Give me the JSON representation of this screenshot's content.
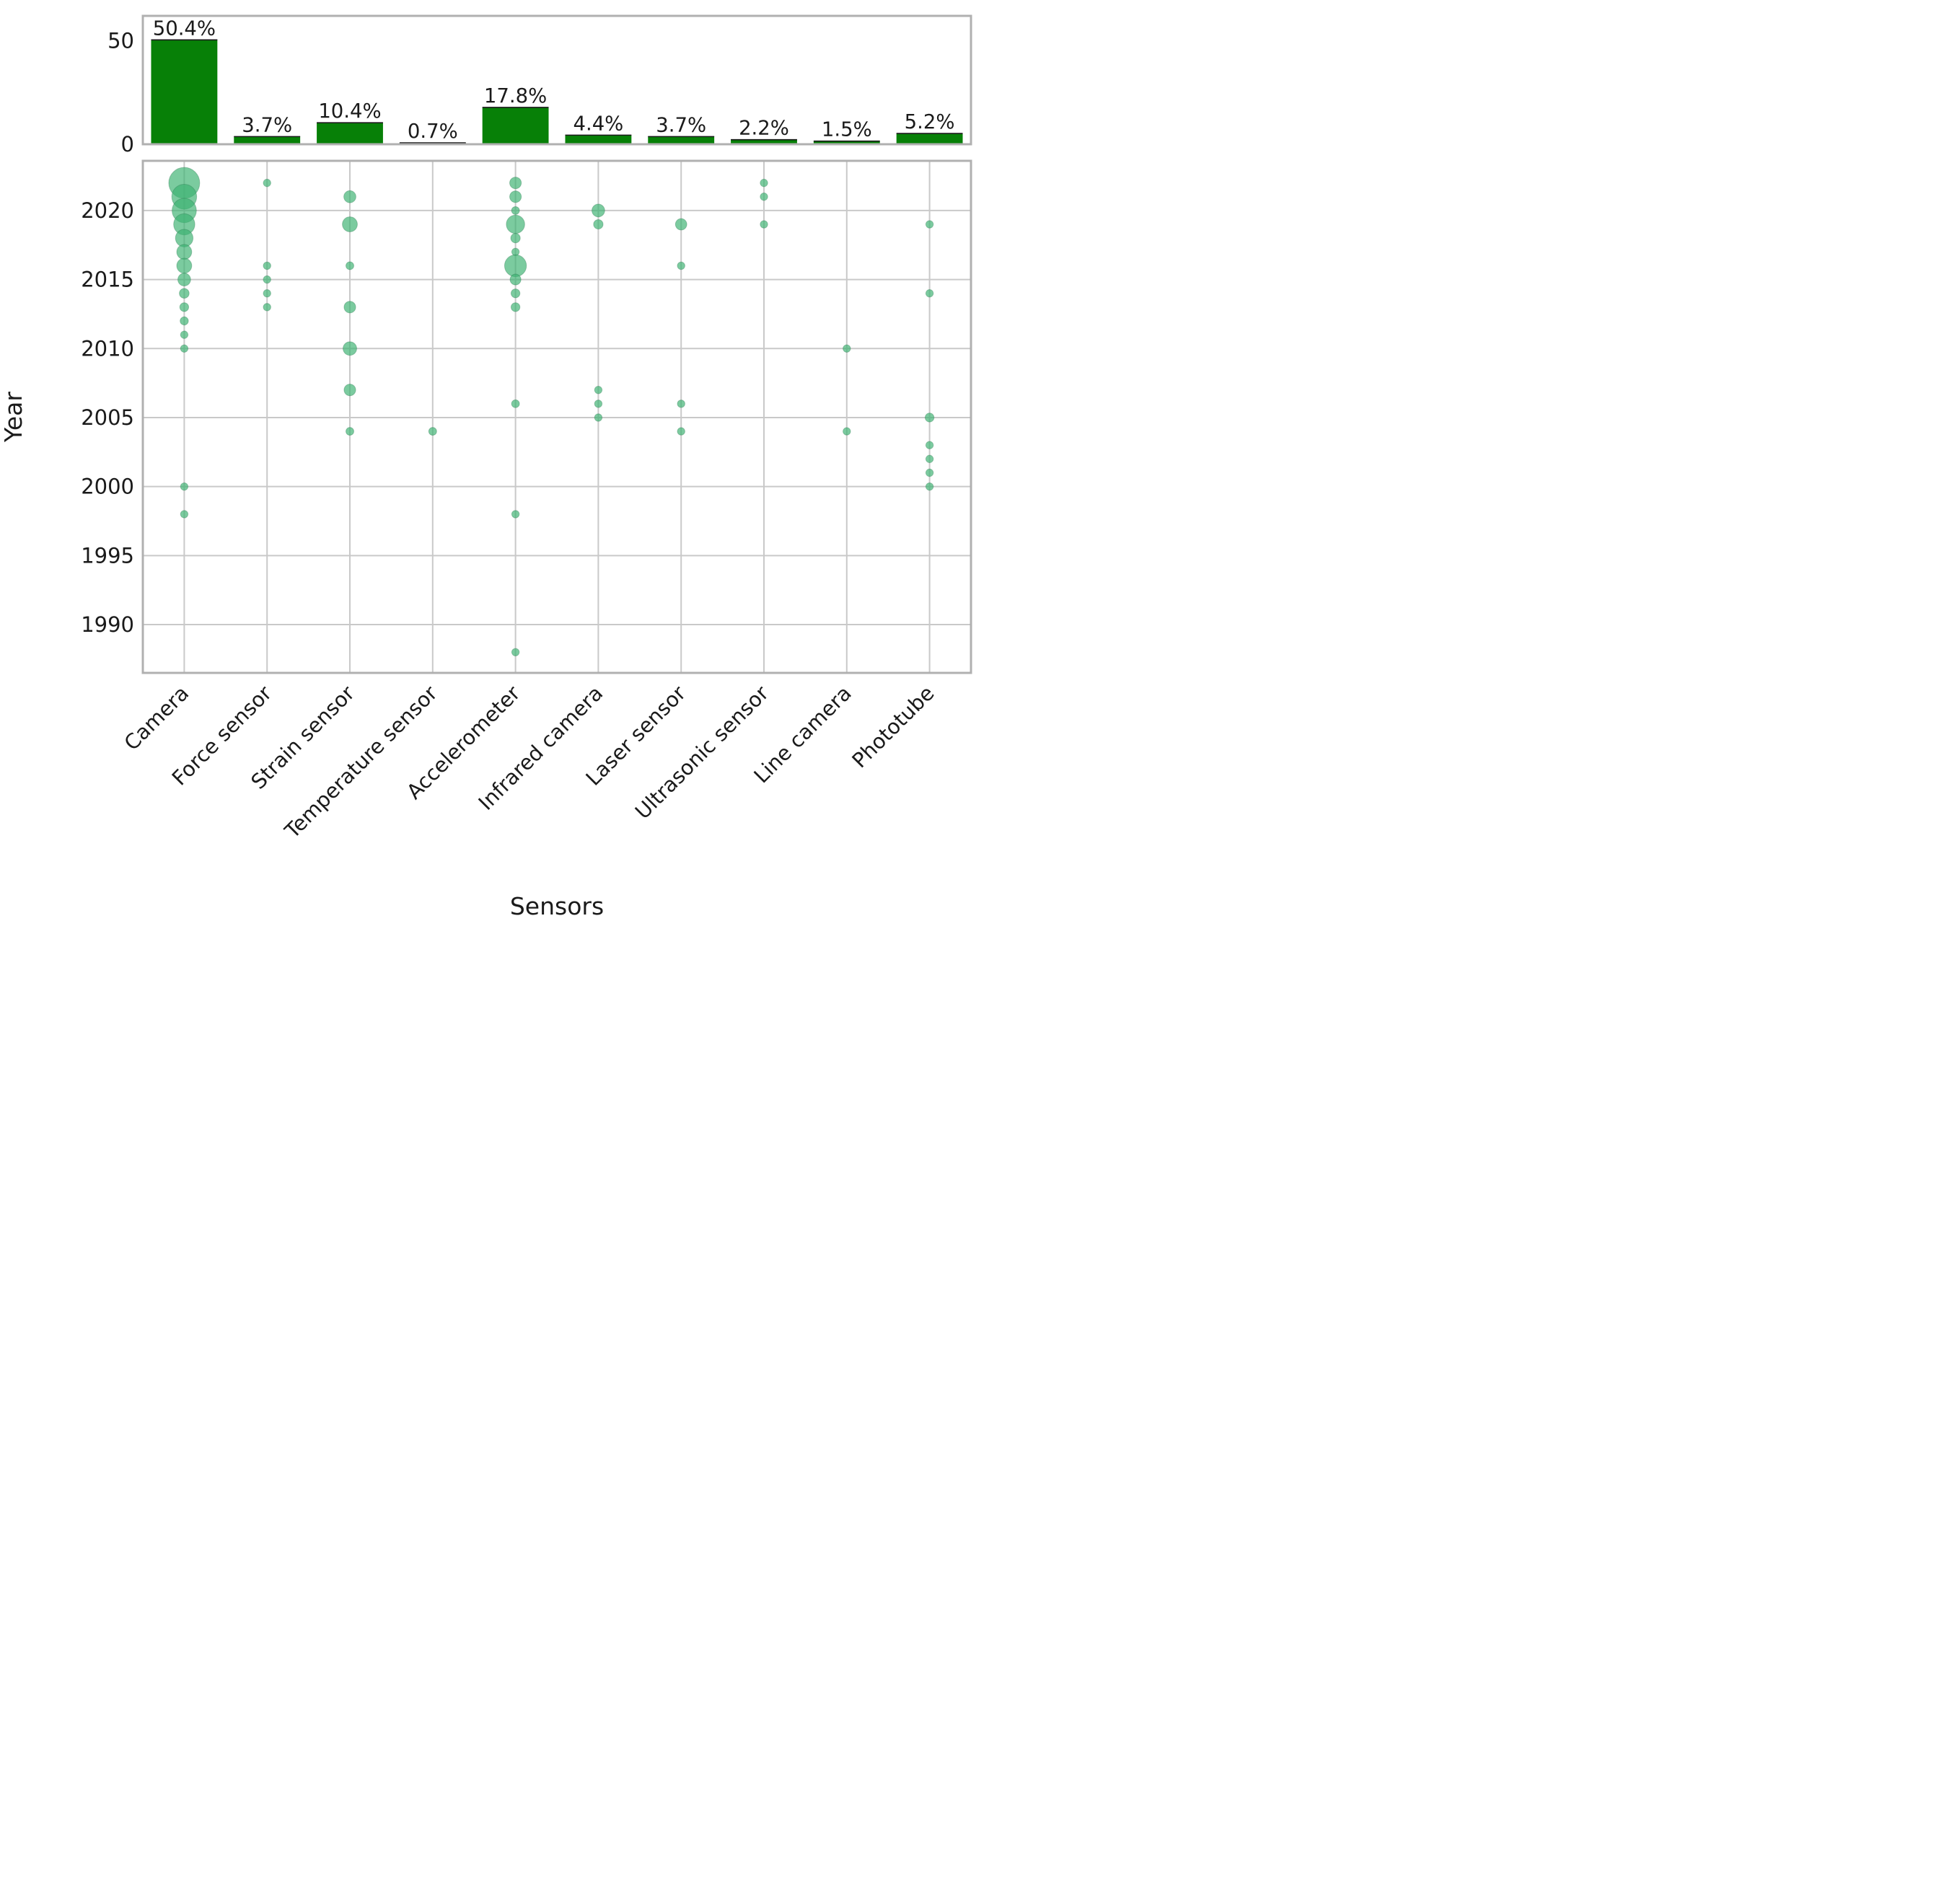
{
  "figure": {
    "xlabel": "Sensors",
    "ylabel_scatter": "Year",
    "colors": {
      "bar_fill": "#078007",
      "bar_top_edge": "#1a1a1a",
      "bubble_fill": "#3CB371",
      "bubble_alpha": 0.68,
      "bubble_edge": "rgba(40,120,76,0.35)",
      "grid": "#c9c9c9",
      "frame": "#b0b0b0",
      "text": "#1a1a1a"
    }
  },
  "chart_data": [
    {
      "type": "bar",
      "title": "",
      "categories": [
        "Camera",
        "Force sensor",
        "Strain sensor",
        "Temperature sensor",
        "Accelerometer",
        "Infrared camera",
        "Laser sensor",
        "Ultrasonic sensor",
        "Line camera",
        "Phototube"
      ],
      "values": [
        50.4,
        3.7,
        10.4,
        0.7,
        17.8,
        4.4,
        3.7,
        2.2,
        1.5,
        5.2
      ],
      "bar_labels": [
        "50.4%",
        "3.7%",
        "10.4%",
        "0.7%",
        "17.8%",
        "4.4%",
        "3.7%",
        "2.2%",
        "1.5%",
        "5.2%"
      ],
      "xlabel": "",
      "ylabel": "",
      "yticks": [
        0,
        50
      ],
      "ylim": [
        0,
        62
      ],
      "grid": false,
      "legend": "none"
    },
    {
      "type": "scatter",
      "title": "",
      "xlabel": "Sensors",
      "ylabel": "Year",
      "categories": [
        "Camera",
        "Force sensor",
        "Strain sensor",
        "Temperature sensor",
        "Accelerometer",
        "Infrared camera",
        "Laser sensor",
        "Ultrasonic sensor",
        "Line camera",
        "Phototube"
      ],
      "yticks": [
        2020,
        2015,
        2010,
        2005,
        2000,
        1995,
        1990
      ],
      "ylim": [
        1986.5,
        2023.6
      ],
      "grid": true,
      "legend": "none",
      "size_note": "size is estimated relative publication count per (sensor, year); bubble area scales with size",
      "points": [
        {
          "sensor": "Camera",
          "year": 2022,
          "size": 17
        },
        {
          "sensor": "Camera",
          "year": 2021,
          "size": 11
        },
        {
          "sensor": "Camera",
          "year": 2020,
          "size": 10.5
        },
        {
          "sensor": "Camera",
          "year": 2019,
          "size": 8
        },
        {
          "sensor": "Camera",
          "year": 2018,
          "size": 5.5
        },
        {
          "sensor": "Camera",
          "year": 2017,
          "size": 4
        },
        {
          "sensor": "Camera",
          "year": 2016,
          "size": 4
        },
        {
          "sensor": "Camera",
          "year": 2015,
          "size": 2.9
        },
        {
          "sensor": "Camera",
          "year": 2014,
          "size": 1.7
        },
        {
          "sensor": "Camera",
          "year": 2013,
          "size": 1.4
        },
        {
          "sensor": "Camera",
          "year": 2012,
          "size": 1.2
        },
        {
          "sensor": "Camera",
          "year": 2011,
          "size": 1
        },
        {
          "sensor": "Camera",
          "year": 2010,
          "size": 1
        },
        {
          "sensor": "Camera",
          "year": 2000,
          "size": 1
        },
        {
          "sensor": "Camera",
          "year": 1998,
          "size": 1
        },
        {
          "sensor": "Force sensor",
          "year": 2022,
          "size": 1
        },
        {
          "sensor": "Force sensor",
          "year": 2016,
          "size": 1
        },
        {
          "sensor": "Force sensor",
          "year": 2015,
          "size": 1
        },
        {
          "sensor": "Force sensor",
          "year": 2014,
          "size": 1
        },
        {
          "sensor": "Force sensor",
          "year": 2013,
          "size": 1
        },
        {
          "sensor": "Strain sensor",
          "year": 2021,
          "size": 2.6
        },
        {
          "sensor": "Strain sensor",
          "year": 2019,
          "size": 4
        },
        {
          "sensor": "Strain sensor",
          "year": 2016,
          "size": 1.1
        },
        {
          "sensor": "Strain sensor",
          "year": 2013,
          "size": 2.4
        },
        {
          "sensor": "Strain sensor",
          "year": 2010,
          "size": 3.3
        },
        {
          "sensor": "Strain sensor",
          "year": 2007,
          "size": 2.4
        },
        {
          "sensor": "Strain sensor",
          "year": 2004,
          "size": 1.1
        },
        {
          "sensor": "Temperature sensor",
          "year": 2004,
          "size": 1.1
        },
        {
          "sensor": "Accelerometer",
          "year": 2022,
          "size": 2.4
        },
        {
          "sensor": "Accelerometer",
          "year": 2021,
          "size": 2.4
        },
        {
          "sensor": "Accelerometer",
          "year": 2020,
          "size": 1.1
        },
        {
          "sensor": "Accelerometer",
          "year": 2019,
          "size": 6
        },
        {
          "sensor": "Accelerometer",
          "year": 2018,
          "size": 1.6
        },
        {
          "sensor": "Accelerometer",
          "year": 2017,
          "size": 1
        },
        {
          "sensor": "Accelerometer",
          "year": 2016,
          "size": 8.5
        },
        {
          "sensor": "Accelerometer",
          "year": 2015,
          "size": 2.1
        },
        {
          "sensor": "Accelerometer",
          "year": 2014,
          "size": 1.4
        },
        {
          "sensor": "Accelerometer",
          "year": 2013,
          "size": 1.4
        },
        {
          "sensor": "Accelerometer",
          "year": 2006,
          "size": 1.1
        },
        {
          "sensor": "Accelerometer",
          "year": 1998,
          "size": 1
        },
        {
          "sensor": "Accelerometer",
          "year": 1988,
          "size": 1
        },
        {
          "sensor": "Infrared camera",
          "year": 2020,
          "size": 2.9
        },
        {
          "sensor": "Infrared camera",
          "year": 2019,
          "size": 1.6
        },
        {
          "sensor": "Infrared camera",
          "year": 2007,
          "size": 1
        },
        {
          "sensor": "Infrared camera",
          "year": 2006,
          "size": 1
        },
        {
          "sensor": "Infrared camera",
          "year": 2005,
          "size": 1
        },
        {
          "sensor": "Laser sensor",
          "year": 2019,
          "size": 2.3
        },
        {
          "sensor": "Laser sensor",
          "year": 2016,
          "size": 1
        },
        {
          "sensor": "Laser sensor",
          "year": 2006,
          "size": 1
        },
        {
          "sensor": "Laser sensor",
          "year": 2004,
          "size": 1
        },
        {
          "sensor": "Ultrasonic sensor",
          "year": 2022,
          "size": 1
        },
        {
          "sensor": "Ultrasonic sensor",
          "year": 2021,
          "size": 1
        },
        {
          "sensor": "Ultrasonic sensor",
          "year": 2019,
          "size": 1
        },
        {
          "sensor": "Line camera",
          "year": 2010,
          "size": 1
        },
        {
          "sensor": "Line camera",
          "year": 2004,
          "size": 1
        },
        {
          "sensor": "Phototube",
          "year": 2019,
          "size": 1
        },
        {
          "sensor": "Phototube",
          "year": 2014,
          "size": 1
        },
        {
          "sensor": "Phototube",
          "year": 2005,
          "size": 1.4
        },
        {
          "sensor": "Phototube",
          "year": 2003,
          "size": 1
        },
        {
          "sensor": "Phototube",
          "year": 2002,
          "size": 1
        },
        {
          "sensor": "Phototube",
          "year": 2001,
          "size": 1
        },
        {
          "sensor": "Phototube",
          "year": 2000,
          "size": 1
        }
      ]
    }
  ]
}
